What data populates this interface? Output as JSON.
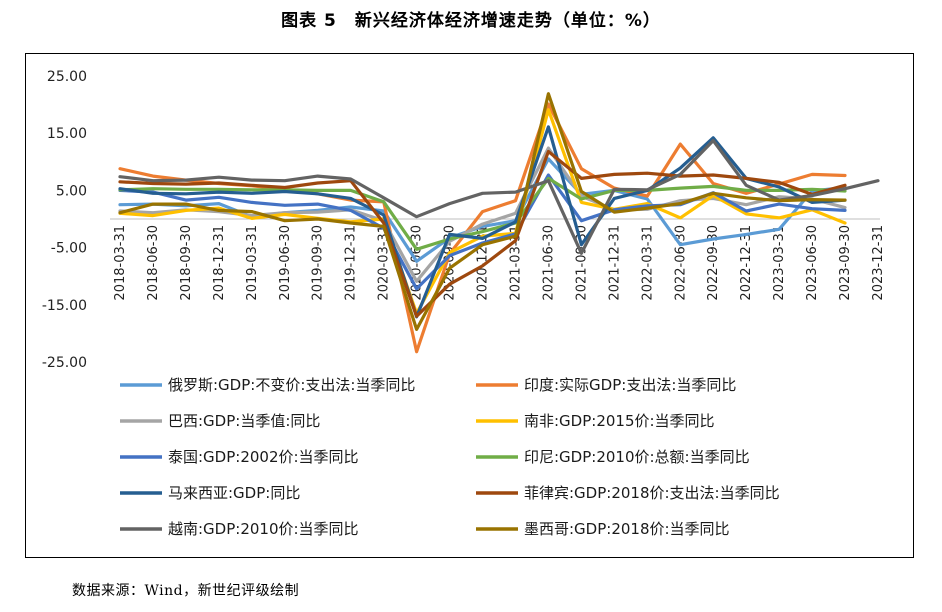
{
  "page": {
    "title": "图表 5　新兴经济体经济增速走势（单位：%）",
    "source": "数据来源：Wind，新世纪评级绘制"
  },
  "chart_data": {
    "type": "line",
    "title": "图表 5　新兴经济体经济增速走势（单位：%）",
    "xlabel": "",
    "ylabel": "",
    "ylim": [
      -25,
      25
    ],
    "yticks": [
      25,
      15,
      5,
      -5,
      -15,
      -25
    ],
    "ytick_labels": [
      "25.00",
      "15.00",
      "5.00",
      "-5.00",
      "-15.00",
      "-25.00"
    ],
    "grid": false,
    "legend_position": "bottom",
    "categories": [
      "2018-03-31",
      "2018-06-30",
      "2018-09-30",
      "2018-12-31",
      "2019-03-31",
      "2019-06-30",
      "2019-09-30",
      "2019-12-31",
      "2020-03-31",
      "2020-06-30",
      "2020-09-30",
      "2020-12-31",
      "2021-03-31",
      "2021-06-30",
      "2021-09-30",
      "2021-12-31",
      "2022-03-31",
      "2022-06-30",
      "2022-09-30",
      "2022-12-31",
      "2023-03-31",
      "2023-06-30",
      "2023-09-30",
      "2023-12-31"
    ],
    "series": [
      {
        "name": "俄罗斯:GDP:不变价:支出法:当季同比",
        "color": "#5b9bd5",
        "values": [
          2.5,
          2.6,
          2.3,
          2.7,
          0.4,
          1.1,
          1.5,
          2.1,
          1.4,
          -7.4,
          -3.3,
          -1.3,
          -0.3,
          10.5,
          4.3,
          5.0,
          3.5,
          -4.5,
          -3.5,
          -2.7,
          -1.8,
          4.9,
          5.5,
          null
        ]
      },
      {
        "name": "印度:实际GDP:支出法:当季同比",
        "color": "#ed7d31",
        "values": [
          8.8,
          7.5,
          6.8,
          6.2,
          5.8,
          5.2,
          4.4,
          3.3,
          3.0,
          -23.2,
          -6.1,
          1.3,
          3.2,
          20.1,
          8.8,
          5.4,
          4.0,
          13.1,
          6.2,
          4.5,
          6.1,
          7.8,
          7.6,
          null
        ]
      },
      {
        "name": "巴西:GDP:当季值:同比",
        "color": "#a5a5a5",
        "values": [
          1.4,
          1.1,
          1.6,
          1.3,
          0.6,
          1.1,
          1.2,
          1.6,
          -0.3,
          -10.9,
          -3.9,
          -0.9,
          1.0,
          12.4,
          4.0,
          1.6,
          1.7,
          3.2,
          3.6,
          2.5,
          3.9,
          3.5,
          2.0,
          null
        ]
      },
      {
        "name": "南非:GDP:2015价:当季同比",
        "color": "#ffc000",
        "values": [
          1.0,
          0.6,
          1.5,
          1.9,
          0.1,
          0.8,
          0.1,
          -0.5,
          0.0,
          -16.5,
          -5.9,
          -3.0,
          -2.5,
          19.1,
          2.9,
          1.7,
          2.7,
          0.2,
          4.1,
          0.9,
          0.2,
          1.6,
          -0.7,
          null
        ]
      },
      {
        "name": "泰国:GDP:2002价:当季同比",
        "color": "#4472c4",
        "values": [
          5.0,
          4.7,
          3.3,
          3.8,
          2.9,
          2.4,
          2.6,
          1.5,
          -1.6,
          -12.2,
          -6.4,
          -4.2,
          -2.6,
          7.7,
          -0.3,
          1.6,
          2.3,
          2.5,
          4.6,
          1.4,
          2.6,
          1.8,
          1.5,
          null
        ]
      },
      {
        "name": "印尼:GDP:2010价:总额:当季同比",
        "color": "#70ad47",
        "values": [
          5.1,
          5.3,
          5.2,
          5.2,
          5.1,
          5.1,
          5.0,
          5.0,
          3.0,
          -5.3,
          -3.5,
          -2.2,
          -0.7,
          7.1,
          3.5,
          5.0,
          5.0,
          5.4,
          5.7,
          5.0,
          5.0,
          5.2,
          4.9,
          null
        ]
      },
      {
        "name": "马来西亚:GDP:同比",
        "color": "#255e91",
        "values": [
          5.3,
          4.5,
          4.4,
          4.7,
          4.5,
          4.8,
          4.4,
          3.6,
          0.7,
          -17.1,
          -2.7,
          -3.4,
          -0.5,
          16.1,
          -4.5,
          3.6,
          5.0,
          8.9,
          14.2,
          7.1,
          5.6,
          2.9,
          3.3,
          null
        ]
      },
      {
        "name": "菲律宾:GDP:2018价:支出法:当季同比",
        "color": "#9e480e",
        "values": [
          6.5,
          6.2,
          6.1,
          6.3,
          5.9,
          5.5,
          6.3,
          6.7,
          -0.7,
          -17.0,
          -11.4,
          -8.2,
          -3.8,
          11.8,
          7.1,
          7.8,
          8.0,
          7.5,
          7.7,
          7.1,
          6.4,
          4.3,
          5.9,
          null
        ]
      },
      {
        "name": "越南:GDP:2010价:当季同比",
        "color": "#636363",
        "values": [
          7.4,
          6.7,
          6.8,
          7.3,
          6.8,
          6.7,
          7.5,
          7.0,
          3.7,
          0.4,
          2.7,
          4.5,
          4.7,
          6.7,
          -6.0,
          5.2,
          5.1,
          7.8,
          13.7,
          5.9,
          3.3,
          4.1,
          5.3,
          6.7
        ]
      },
      {
        "name": "墨西哥:GDP:2018价:当季同比",
        "color": "#997300",
        "values": [
          1.1,
          2.6,
          2.6,
          1.5,
          1.3,
          -0.3,
          0.0,
          -0.7,
          -1.3,
          -19.3,
          -8.6,
          -4.5,
          -3.0,
          21.9,
          4.8,
          1.2,
          1.9,
          2.7,
          4.5,
          3.7,
          3.2,
          3.4,
          3.3,
          null
        ]
      }
    ]
  }
}
